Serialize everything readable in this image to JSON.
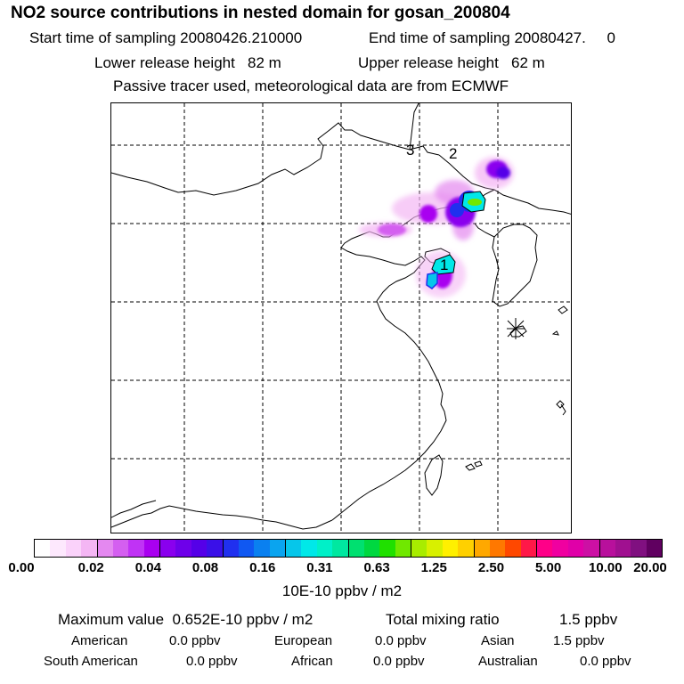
{
  "title": "NO2 source contributions in nested domain for gosan_200804",
  "header": {
    "start_label": "Start time of sampling 20080426.210000",
    "end_label": "End time of sampling 20080427.     0",
    "lower_label": "Lower release height   82 m",
    "upper_label": "Upper release height   62 m",
    "note": "Passive tracer used, meteorological data are from ECMWF"
  },
  "map": {
    "region_labels": [
      "1",
      "2",
      "3"
    ],
    "receptor_marker": "star-marker-icon"
  },
  "colorbar": {
    "tick_labels": [
      "0.00",
      "0.02",
      "0.04",
      "0.08",
      "0.16",
      "0.31",
      "0.63",
      "1.25",
      "2.50",
      "5.00",
      "10.00",
      "20.00"
    ],
    "colors": [
      "#ffffff",
      "#fde8fd",
      "#fad2fa",
      "#f4b6f4",
      "#e488f0",
      "#d45ff0",
      "#c033f5",
      "#a900f0",
      "#8a00ee",
      "#6e00ea",
      "#5500e8",
      "#3a10e8",
      "#2030ef",
      "#1058f2",
      "#0a80f0",
      "#0aa4ef",
      "#06c6ea",
      "#00e8e8",
      "#00f0c8",
      "#00e8a0",
      "#00e070",
      "#00d840",
      "#20e000",
      "#70e800",
      "#a8ec00",
      "#d8f000",
      "#fff000",
      "#ffd000",
      "#ffa800",
      "#ff7800",
      "#ff4800",
      "#ff1848",
      "#ff0088",
      "#f000a0",
      "#e000a8",
      "#cc10a4",
      "#b8109c",
      "#a01090",
      "#801080",
      "#600060"
    ]
  },
  "unit_label": "10E-10 ppbv / m2",
  "stats": {
    "max_label": "Maximum value  0.652E-10 ppbv / m2",
    "total_label": "Total mixing ratio",
    "total_value": "1.5 ppbv",
    "rows": [
      [
        {
          "label": "American",
          "value": "0.0 ppbv"
        },
        {
          "label": "European",
          "value": "0.0 ppbv"
        },
        {
          "label": "Asian",
          "value": "1.5 ppbv"
        }
      ],
      [
        {
          "label": "South American",
          "value": "0.0 ppbv"
        },
        {
          "label": "African",
          "value": "0.0 ppbv"
        },
        {
          "label": "Australian",
          "value": "0.0 ppbv"
        }
      ]
    ]
  }
}
